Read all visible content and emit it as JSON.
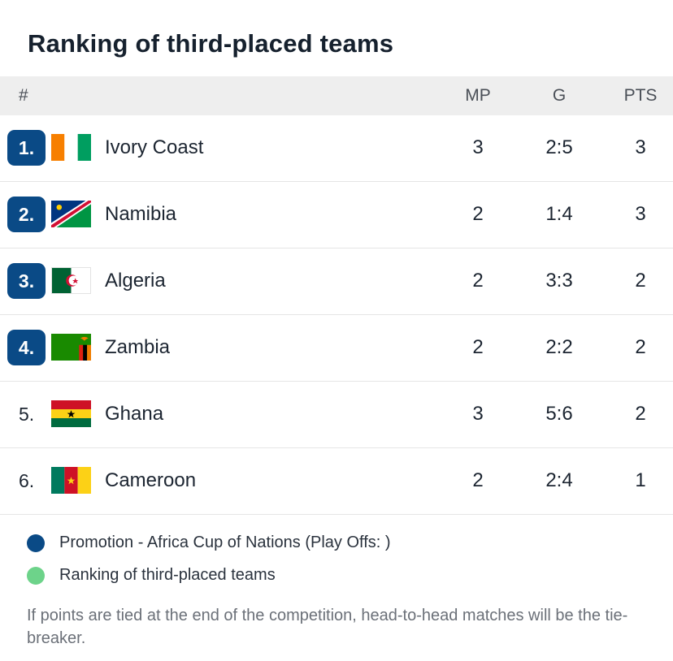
{
  "title": "Ranking of third-placed teams",
  "colors": {
    "promotion": "#0a4a86",
    "ranking": "#6dd38a"
  },
  "header": {
    "rank": "#",
    "mp": "MP",
    "g": "G",
    "pts": "PTS"
  },
  "rows": [
    {
      "rank": "1.",
      "team": "Ivory Coast",
      "mp": "3",
      "g": "2:5",
      "pts": "3",
      "flag": "ivory-coast-flag-icon",
      "highlight": true
    },
    {
      "rank": "2.",
      "team": "Namibia",
      "mp": "2",
      "g": "1:4",
      "pts": "3",
      "flag": "namibia-flag-icon",
      "highlight": true
    },
    {
      "rank": "3.",
      "team": "Algeria",
      "mp": "2",
      "g": "3:3",
      "pts": "2",
      "flag": "algeria-flag-icon",
      "highlight": true
    },
    {
      "rank": "4.",
      "team": "Zambia",
      "mp": "2",
      "g": "2:2",
      "pts": "2",
      "flag": "zambia-flag-icon",
      "highlight": true
    },
    {
      "rank": "5.",
      "team": "Ghana",
      "mp": "3",
      "g": "5:6",
      "pts": "2",
      "flag": "ghana-flag-icon",
      "highlight": false
    },
    {
      "rank": "6.",
      "team": "Cameroon",
      "mp": "2",
      "g": "2:4",
      "pts": "1",
      "flag": "cameroon-flag-icon",
      "highlight": false
    }
  ],
  "legend": [
    {
      "label": "Promotion - Africa Cup of Nations (Play Offs: )"
    },
    {
      "label": "Ranking of third-placed teams"
    }
  ],
  "note": "If points are tied at the end of the competition, head-to-head matches will be the tie-breaker."
}
